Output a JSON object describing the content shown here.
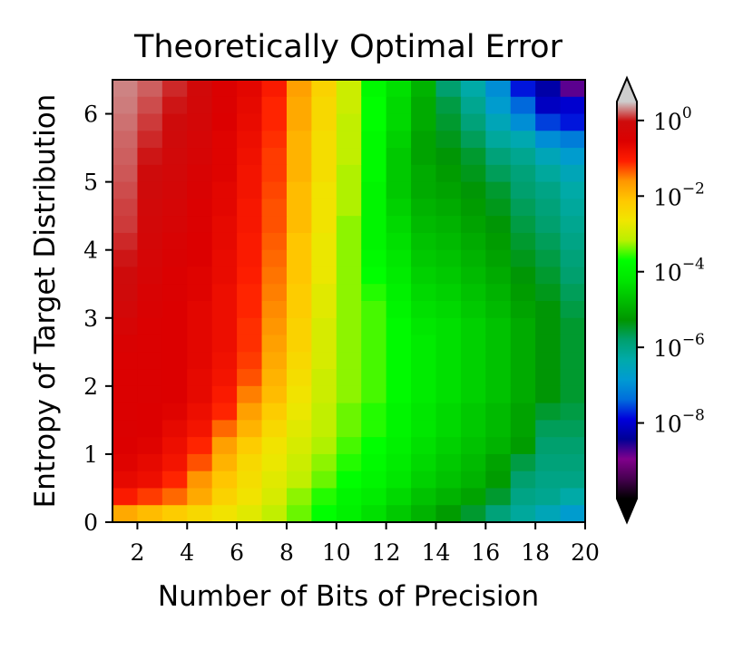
{
  "chart_data": {
    "type": "heatmap",
    "title": "Theoretically Optimal Error",
    "xlabel": "Number of Bits of Precision",
    "ylabel": "Entropy of Target Distribution",
    "xlim": [
      1,
      20
    ],
    "ylim": [
      0,
      6.5
    ],
    "x_ticks": [
      "2",
      "4",
      "6",
      "8",
      "10",
      "12",
      "14",
      "16",
      "18",
      "20"
    ],
    "x_tick_values": [
      2,
      4,
      6,
      8,
      10,
      12,
      14,
      16,
      18,
      20
    ],
    "y_ticks": [
      "0",
      "1",
      "2",
      "3",
      "4",
      "5",
      "6"
    ],
    "y_tick_values": [
      0,
      1,
      2,
      3,
      4,
      5,
      6
    ],
    "x_bins": 19,
    "y_bins": 26,
    "colorbar": {
      "scale": "log",
      "colormap": "nipy_spectral",
      "range_log10": [
        -10,
        0.5
      ],
      "extend": "both",
      "ticks": [
        {
          "base": "10",
          "exp": "0",
          "log10": 0
        },
        {
          "base": "10",
          "exp": "−2",
          "log10": -2
        },
        {
          "base": "10",
          "exp": "−4",
          "log10": -4
        },
        {
          "base": "10",
          "exp": "−6",
          "log10": -6
        },
        {
          "base": "10",
          "exp": "−8",
          "log10": -8
        }
      ]
    },
    "grid_rows_entropy_bins_top_to_bottom_log10_error_by_bits_1_to_20": [
      [
        0.3,
        0.2,
        0.05,
        -0.15,
        -0.5,
        -0.65,
        -1.0,
        -1.7,
        -2.3,
        -3.0,
        -3.8,
        -4.3,
        -4.9,
        -5.8,
        -6.3,
        -7.0,
        -7.8,
        -8.3,
        -8.8
      ],
      [
        0.28,
        0.15,
        0.0,
        -0.2,
        -0.5,
        -0.7,
        -1.1,
        -1.8,
        -2.4,
        -3.0,
        -3.7,
        -4.4,
        -5.0,
        -5.6,
        -6.1,
        -6.8,
        -7.4,
        -8.1,
        -8.0
      ],
      [
        0.25,
        0.1,
        -0.05,
        -0.25,
        -0.55,
        -0.75,
        -1.1,
        -1.8,
        -2.4,
        -3.1,
        -3.7,
        -4.4,
        -5.0,
        -5.5,
        -5.9,
        -6.5,
        -7.0,
        -7.6,
        -7.8
      ],
      [
        0.22,
        0.05,
        -0.1,
        -0.3,
        -0.6,
        -0.8,
        -1.15,
        -1.9,
        -2.5,
        -3.1,
        -3.8,
        -4.5,
        -5.1,
        -5.4,
        -5.7,
        -6.2,
        -6.4,
        -7.0,
        -7.2
      ],
      [
        0.2,
        0.0,
        -0.15,
        -0.35,
        -0.6,
        -0.85,
        -1.2,
        -1.9,
        -2.5,
        -3.1,
        -3.8,
        -4.6,
        -5.1,
        -5.3,
        -5.5,
        -5.9,
        -6.1,
        -6.5,
        -6.8
      ],
      [
        0.18,
        -0.05,
        -0.2,
        -0.4,
        -0.6,
        -0.9,
        -1.2,
        -1.9,
        -2.5,
        -3.2,
        -3.8,
        -4.6,
        -5.0,
        -5.2,
        -5.4,
        -5.7,
        -5.9,
        -6.2,
        -6.5
      ],
      [
        0.15,
        -0.1,
        -0.25,
        -0.45,
        -0.65,
        -0.9,
        -1.25,
        -2.0,
        -2.6,
        -3.2,
        -3.9,
        -4.6,
        -5.0,
        -5.1,
        -5.3,
        -5.5,
        -5.8,
        -6.0,
        -6.3
      ],
      [
        0.12,
        -0.15,
        -0.3,
        -0.5,
        -0.65,
        -0.95,
        -1.3,
        -2.0,
        -2.6,
        -3.2,
        -3.9,
        -4.5,
        -4.9,
        -5.0,
        -5.2,
        -5.4,
        -5.7,
        -5.9,
        -6.2
      ],
      [
        0.1,
        -0.2,
        -0.35,
        -0.5,
        -0.7,
        -0.95,
        -1.3,
        -2.0,
        -2.6,
        -3.3,
        -3.9,
        -4.4,
        -4.8,
        -4.9,
        -5.1,
        -5.3,
        -5.6,
        -5.8,
        -6.1
      ],
      [
        0.05,
        -0.25,
        -0.4,
        -0.55,
        -0.7,
        -1.0,
        -1.35,
        -2.1,
        -2.7,
        -3.3,
        -3.9,
        -4.3,
        -4.7,
        -4.8,
        -5.0,
        -5.2,
        -5.5,
        -5.7,
        -6.0
      ],
      [
        0.0,
        -0.3,
        -0.45,
        -0.55,
        -0.75,
        -1.0,
        -1.4,
        -2.1,
        -2.7,
        -3.3,
        -3.8,
        -4.2,
        -4.6,
        -4.7,
        -4.9,
        -5.1,
        -5.4,
        -5.6,
        -5.9
      ],
      [
        -0.05,
        -0.35,
        -0.5,
        -0.6,
        -0.75,
        -1.05,
        -1.45,
        -2.1,
        -2.7,
        -3.3,
        -3.7,
        -4.1,
        -4.5,
        -4.6,
        -4.8,
        -5.0,
        -5.3,
        -5.5,
        -5.8
      ],
      [
        -0.1,
        -0.4,
        -0.5,
        -0.6,
        -0.8,
        -1.1,
        -1.5,
        -2.2,
        -2.8,
        -3.3,
        -3.6,
        -4.0,
        -4.4,
        -4.5,
        -4.7,
        -4.9,
        -5.2,
        -5.4,
        -5.7
      ],
      [
        -0.2,
        -0.45,
        -0.55,
        -0.65,
        -0.8,
        -1.1,
        -1.55,
        -2.2,
        -2.8,
        -3.3,
        -3.5,
        -3.9,
        -4.3,
        -4.4,
        -4.6,
        -4.8,
        -5.1,
        -5.3,
        -5.6
      ],
      [
        -0.35,
        -0.5,
        -0.55,
        -0.65,
        -0.8,
        -1.15,
        -1.6,
        -2.3,
        -2.9,
        -3.3,
        -3.5,
        -3.8,
        -4.2,
        -4.3,
        -4.5,
        -4.7,
        -5.0,
        -5.3,
        -5.5
      ],
      [
        -0.45,
        -0.5,
        -0.55,
        -0.65,
        -0.8,
        -1.15,
        -1.7,
        -2.3,
        -2.9,
        -3.3,
        -3.5,
        -3.8,
        -4.1,
        -4.3,
        -4.5,
        -4.7,
        -5.0,
        -5.3,
        -5.5
      ],
      [
        -0.5,
        -0.5,
        -0.55,
        -0.65,
        -0.85,
        -1.2,
        -1.8,
        -2.4,
        -2.9,
        -3.3,
        -3.5,
        -3.8,
        -4.1,
        -4.3,
        -4.5,
        -4.7,
        -5.0,
        -5.3,
        -5.5
      ],
      [
        -0.5,
        -0.5,
        -0.55,
        -0.7,
        -0.9,
        -1.3,
        -1.9,
        -2.5,
        -3.0,
        -3.3,
        -3.5,
        -3.8,
        -4.1,
        -4.3,
        -4.5,
        -4.7,
        -5.0,
        -5.3,
        -5.5
      ],
      [
        -0.5,
        -0.5,
        -0.55,
        -0.7,
        -1.0,
        -1.5,
        -2.0,
        -2.6,
        -3.0,
        -3.3,
        -3.5,
        -3.8,
        -4.1,
        -4.3,
        -4.5,
        -4.7,
        -5.0,
        -5.3,
        -5.5
      ],
      [
        -0.5,
        -0.55,
        -0.6,
        -0.8,
        -1.1,
        -1.7,
        -2.2,
        -2.7,
        -3.1,
        -3.4,
        -3.6,
        -3.9,
        -4.2,
        -4.4,
        -4.6,
        -4.8,
        -5.1,
        -5.5,
        -5.6
      ],
      [
        -0.5,
        -0.55,
        -0.7,
        -0.9,
        -1.4,
        -1.9,
        -2.4,
        -2.8,
        -3.1,
        -3.4,
        -3.6,
        -3.9,
        -4.2,
        -4.4,
        -4.6,
        -4.8,
        -5.1,
        -5.7,
        -5.7
      ],
      [
        -0.55,
        -0.6,
        -0.8,
        -1.1,
        -1.7,
        -2.2,
        -2.6,
        -2.9,
        -3.2,
        -3.5,
        -3.7,
        -4.0,
        -4.3,
        -4.5,
        -4.7,
        -4.9,
        -5.2,
        -5.8,
        -5.8
      ],
      [
        -0.6,
        -0.7,
        -0.9,
        -1.3,
        -1.9,
        -2.4,
        -2.7,
        -3.0,
        -3.3,
        -3.6,
        -3.8,
        -4.1,
        -4.4,
        -4.6,
        -4.8,
        -5.1,
        -5.6,
        -5.9,
        -5.9
      ],
      [
        -0.7,
        -0.8,
        -1.1,
        -1.6,
        -2.1,
        -2.5,
        -2.8,
        -3.1,
        -3.4,
        -3.7,
        -3.9,
        -4.2,
        -4.5,
        -4.7,
        -4.9,
        -5.2,
        -5.8,
        -6.0,
        -6.0
      ],
      [
        -1.0,
        -1.2,
        -1.4,
        -1.8,
        -2.3,
        -2.6,
        -2.9,
        -3.3,
        -3.6,
        -3.9,
        -4.1,
        -4.4,
        -4.7,
        -4.9,
        -5.1,
        -5.5,
        -6.0,
        -6.1,
        -6.3
      ],
      [
        -1.8,
        -2.0,
        -2.2,
        -2.4,
        -2.6,
        -2.8,
        -3.1,
        -3.4,
        -3.7,
        -4.0,
        -4.3,
        -4.6,
        -4.9,
        -5.2,
        -5.5,
        -5.9,
        -6.2,
        -6.5,
        -6.8
      ]
    ]
  }
}
